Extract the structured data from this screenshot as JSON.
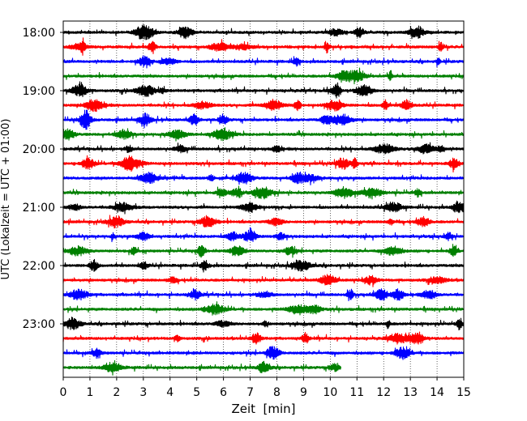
{
  "chart_data": {
    "type": "line",
    "title": "",
    "xlabel": "Zeit  [min]",
    "ylabel": "UTC (Lokalzeit = UTC + 01:00)",
    "xlim": [
      0,
      15
    ],
    "x_ticks": [
      0,
      1,
      2,
      3,
      4,
      5,
      6,
      7,
      8,
      9,
      10,
      11,
      12,
      13,
      14,
      15
    ],
    "x_tick_labels": [
      "0",
      "1",
      "2",
      "3",
      "4",
      "5",
      "6",
      "7",
      "8",
      "9",
      "10",
      "11",
      "12",
      "13",
      "14",
      "15"
    ],
    "x_grid": true,
    "y_ticks": [
      "18:00",
      "19:00",
      "20:00",
      "21:00",
      "22:00",
      "23:00"
    ],
    "trace_interval_min": 15,
    "traces": [
      {
        "start": "18:00",
        "color": "#000000",
        "end_min": 15
      },
      {
        "start": "18:15",
        "color": "#ff0000",
        "end_min": 15
      },
      {
        "start": "18:30",
        "color": "#0000ff",
        "end_min": 15
      },
      {
        "start": "18:45",
        "color": "#008000",
        "end_min": 15
      },
      {
        "start": "19:00",
        "color": "#000000",
        "end_min": 15
      },
      {
        "start": "19:15",
        "color": "#ff0000",
        "end_min": 15
      },
      {
        "start": "19:30",
        "color": "#0000ff",
        "end_min": 15
      },
      {
        "start": "19:45",
        "color": "#008000",
        "end_min": 15
      },
      {
        "start": "20:00",
        "color": "#000000",
        "end_min": 15
      },
      {
        "start": "20:15",
        "color": "#ff0000",
        "end_min": 15
      },
      {
        "start": "20:30",
        "color": "#0000ff",
        "end_min": 15
      },
      {
        "start": "20:45",
        "color": "#008000",
        "end_min": 15
      },
      {
        "start": "21:00",
        "color": "#000000",
        "end_min": 15
      },
      {
        "start": "21:15",
        "color": "#ff0000",
        "end_min": 15
      },
      {
        "start": "21:30",
        "color": "#0000ff",
        "end_min": 15
      },
      {
        "start": "21:45",
        "color": "#008000",
        "end_min": 15
      },
      {
        "start": "22:00",
        "color": "#000000",
        "end_min": 15
      },
      {
        "start": "22:15",
        "color": "#ff0000",
        "end_min": 15
      },
      {
        "start": "22:30",
        "color": "#0000ff",
        "end_min": 15
      },
      {
        "start": "22:45",
        "color": "#008000",
        "end_min": 15
      },
      {
        "start": "23:00",
        "color": "#000000",
        "end_min": 15
      },
      {
        "start": "23:15",
        "color": "#ff0000",
        "end_min": 15
      },
      {
        "start": "23:30",
        "color": "#0000ff",
        "end_min": 15
      },
      {
        "start": "23:45",
        "color": "#008000",
        "end_min": 10.4
      }
    ]
  }
}
